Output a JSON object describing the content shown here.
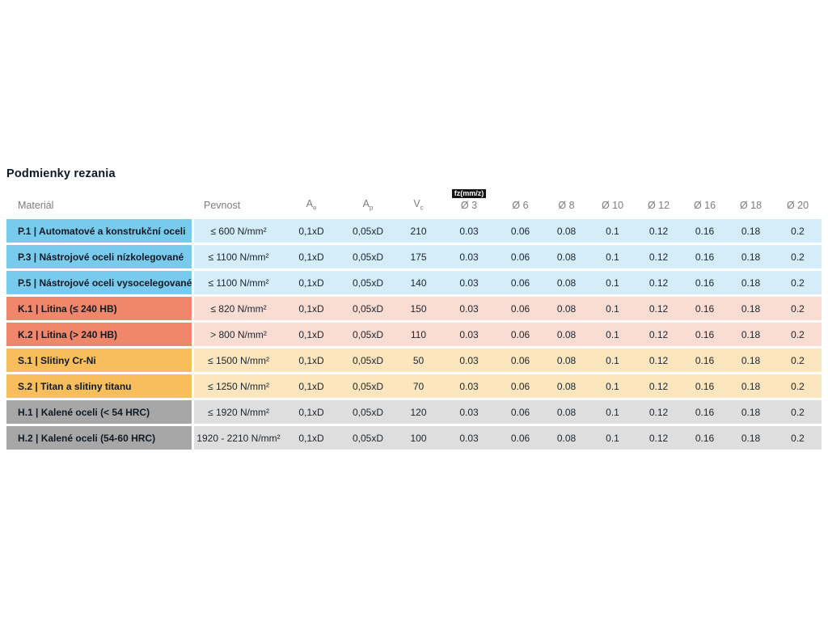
{
  "page": {
    "title": "Podmienky rezania"
  },
  "table": {
    "headers": {
      "material": "Materiál",
      "pevnost": "Pevnost",
      "ae": {
        "base": "A",
        "sub": "e"
      },
      "ap": {
        "base": "A",
        "sub": "p"
      },
      "vc": {
        "base": "V",
        "sub": "c"
      },
      "fz_tag": "fz(mm/z)",
      "diameters": [
        "Ø 3",
        "Ø 6",
        "Ø 8",
        "Ø 10",
        "Ø 12",
        "Ø 16",
        "Ø 18",
        "Ø 20"
      ]
    },
    "group_colors": {
      "P": {
        "label": "#79CBED",
        "tint": "#D5EDF9"
      },
      "K": {
        "label": "#F0876A",
        "tint": "#FADDD2"
      },
      "S": {
        "label": "#F8BE5C",
        "tint": "#FCE6BE"
      },
      "H": {
        "label": "#A7A7A7",
        "tint": "#DEDEDE"
      }
    },
    "rows": [
      {
        "group": "P",
        "label": "P.1 | Automatové a konstrukční oceli",
        "pevnost": "≤ 600 N/mm²",
        "ae": "0,1xD",
        "ap": "0,05xD",
        "vc": "210",
        "fz": [
          "0.03",
          "0.06",
          "0.08",
          "0.1",
          "0.12",
          "0.16",
          "0.18",
          "0.2"
        ]
      },
      {
        "group": "P",
        "label": "P.3 | Nástrojové oceli nízkolegované",
        "pevnost": "≤ 1100 N/mm²",
        "ae": "0,1xD",
        "ap": "0,05xD",
        "vc": "175",
        "fz": [
          "0.03",
          "0.06",
          "0.08",
          "0.1",
          "0.12",
          "0.16",
          "0.18",
          "0.2"
        ]
      },
      {
        "group": "P",
        "label": "P.5 | Nástrojové oceli vysocelegované",
        "pevnost": "≤ 1100 N/mm²",
        "ae": "0,1xD",
        "ap": "0,05xD",
        "vc": "140",
        "fz": [
          "0.03",
          "0.06",
          "0.08",
          "0.1",
          "0.12",
          "0.16",
          "0.18",
          "0.2"
        ]
      },
      {
        "group": "K",
        "label": "K.1 | Litina (≤ 240 HB)",
        "pevnost": "≤ 820 N/mm²",
        "ae": "0,1xD",
        "ap": "0,05xD",
        "vc": "150",
        "fz": [
          "0.03",
          "0.06",
          "0.08",
          "0.1",
          "0.12",
          "0.16",
          "0.18",
          "0.2"
        ]
      },
      {
        "group": "K",
        "label": "K.2 | Litina (> 240 HB)",
        "pevnost": "> 800 N/mm²",
        "ae": "0,1xD",
        "ap": "0,05xD",
        "vc": "110",
        "fz": [
          "0.03",
          "0.06",
          "0.08",
          "0.1",
          "0.12",
          "0.16",
          "0.18",
          "0.2"
        ]
      },
      {
        "group": "S",
        "label": "S.1 | Slitiny Cr-Ni",
        "pevnost": "≤ 1500 N/mm²",
        "ae": "0,1xD",
        "ap": "0,05xD",
        "vc": "50",
        "fz": [
          "0.03",
          "0.06",
          "0.08",
          "0.1",
          "0.12",
          "0.16",
          "0.18",
          "0.2"
        ]
      },
      {
        "group": "S",
        "label": "S.2 | Titan a slitiny titanu",
        "pevnost": "≤ 1250 N/mm²",
        "ae": "0,1xD",
        "ap": "0,05xD",
        "vc": "70",
        "fz": [
          "0.03",
          "0.06",
          "0.08",
          "0.1",
          "0.12",
          "0.16",
          "0.18",
          "0.2"
        ]
      },
      {
        "group": "H",
        "label": "H.1 | Kalené oceli (< 54 HRC)",
        "pevnost": "≤ 1920 N/mm²",
        "ae": "0,1xD",
        "ap": "0,05xD",
        "vc": "120",
        "fz": [
          "0.03",
          "0.06",
          "0.08",
          "0.1",
          "0.12",
          "0.16",
          "0.18",
          "0.2"
        ]
      },
      {
        "group": "H",
        "label": "H.2 | Kalené oceli (54-60 HRC)",
        "pevnost": "1920 - 2210 N/mm²",
        "ae": "0,1xD",
        "ap": "0,05xD",
        "vc": "100",
        "fz": [
          "0.03",
          "0.06",
          "0.08",
          "0.1",
          "0.12",
          "0.16",
          "0.18",
          "0.2"
        ]
      }
    ]
  }
}
